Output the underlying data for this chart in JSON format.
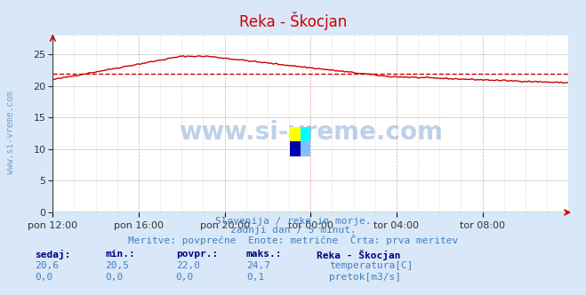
{
  "title": "Reka - Škocjan",
  "title_color": "#cc0000",
  "bg_color": "#d8e8f8",
  "plot_bg_color": "#ffffff",
  "grid_color_major": "#c8c8c8",
  "grid_color_minor": "#e8d8d8",
  "xlim": [
    0,
    288
  ],
  "ylim": [
    0,
    28
  ],
  "yticks": [
    0,
    5,
    10,
    15,
    20,
    25
  ],
  "xtick_labels": [
    "pon 12:00",
    "pon 16:00",
    "pon 20:00",
    "tor 00:00",
    "tor 04:00",
    "tor 08:00"
  ],
  "xtick_positions": [
    0,
    48,
    96,
    144,
    192,
    240
  ],
  "avg_line_y": 22.0,
  "avg_line_color": "#cc0000",
  "temp_line_color": "#cc0000",
  "flow_line_color": "#008800",
  "watermark_text": "www.si-vreme.com",
  "watermark_color": "#4080c0",
  "watermark_alpha": 0.35,
  "left_label": "www.si-vreme.com",
  "left_label_color": "#4080c0",
  "subtitle1": "Slovenija / reke in morje.",
  "subtitle2": "zadnji dan / 5 minut.",
  "subtitle3": "Meritve: povprečne  Enote: metrične  Črta: prva meritev",
  "subtitle_color": "#4080c0",
  "table_header": [
    "sedaj:",
    "min.:",
    "povpr.:",
    "maks.:",
    "Reka - Škocjan"
  ],
  "table_row1": [
    "20,6",
    "20,5",
    "22,0",
    "24,7",
    "temperatura[C]"
  ],
  "table_row2": [
    "0,0",
    "0,0",
    "0,0",
    "0,1",
    "pretok[m3/s]"
  ],
  "table_color": "#4080c0",
  "table_bold_color": "#000080",
  "legend_temp_color": "#cc0000",
  "legend_flow_color": "#008800"
}
